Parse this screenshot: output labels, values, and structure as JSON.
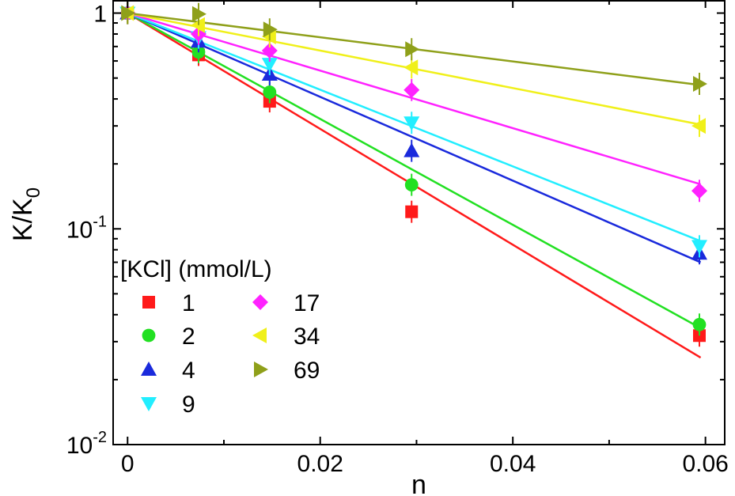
{
  "chart_data": {
    "type": "scatter",
    "xlabel": "n",
    "ylabel": {
      "base": "K/K",
      "sub": "0"
    },
    "xlim": [
      -0.0015,
      0.062
    ],
    "ylim": [
      0.01,
      1.15
    ],
    "yscale": "log",
    "x_ticks": [
      0,
      0.02,
      0.04,
      0.06
    ],
    "x_tick_labels": [
      "0",
      "0.02",
      "0.04",
      "0.06"
    ],
    "y_ticks": [
      {
        "value": 1,
        "base": "1",
        "exp": ""
      },
      {
        "value": 0.1,
        "base": "10",
        "exp": "-1"
      },
      {
        "value": 0.01,
        "base": "10",
        "exp": "-2"
      }
    ],
    "legend": {
      "title": "[KCl] (mmol/L)",
      "placement": "bottom-left"
    },
    "series": [
      {
        "name": "1",
        "color": "#ff1a1a",
        "marker": "square",
        "slope": -61.8,
        "x": [
          0,
          0.00737,
          0.01475,
          0.02949,
          0.05937
        ],
        "y": [
          1.0,
          0.64,
          0.39,
          0.12,
          0.032
        ]
      },
      {
        "name": "2",
        "color": "#22e022",
        "marker": "circle",
        "slope": -56.5,
        "x": [
          0,
          0.00737,
          0.01475,
          0.02949,
          0.05937
        ],
        "y": [
          1.0,
          0.66,
          0.43,
          0.16,
          0.036
        ]
      },
      {
        "name": "4",
        "color": "#1a2adc",
        "marker": "triangle-up",
        "slope": -44.7,
        "x": [
          0,
          0.00737,
          0.01475,
          0.02949,
          0.05937
        ],
        "y": [
          1.0,
          0.74,
          0.52,
          0.23,
          0.077
        ]
      },
      {
        "name": "9",
        "color": "#22eeff",
        "marker": "triangle-down",
        "slope": -40.9,
        "x": [
          0,
          0.00737,
          0.01475,
          0.02949,
          0.05937
        ],
        "y": [
          1.0,
          0.77,
          0.58,
          0.31,
          0.083
        ]
      },
      {
        "name": "17",
        "color": "#ff22ff",
        "marker": "diamond",
        "slope": -30.7,
        "x": [
          0,
          0.00737,
          0.01475,
          0.02949,
          0.05937
        ],
        "y": [
          1.0,
          0.8,
          0.67,
          0.44,
          0.15
        ]
      },
      {
        "name": "34",
        "color": "#f0f01a",
        "marker": "triangle-left",
        "slope": -20.0,
        "x": [
          0,
          0.00737,
          0.01475,
          0.02949,
          0.05937
        ],
        "y": [
          1.0,
          0.88,
          0.78,
          0.56,
          0.3
        ]
      },
      {
        "name": "69",
        "color": "#8fa01a",
        "marker": "triangle-right",
        "slope": -12.9,
        "x": [
          0,
          0.00737,
          0.01475,
          0.02949,
          0.05937
        ],
        "y": [
          1.0,
          0.99,
          0.84,
          0.68,
          0.47
        ]
      }
    ]
  }
}
